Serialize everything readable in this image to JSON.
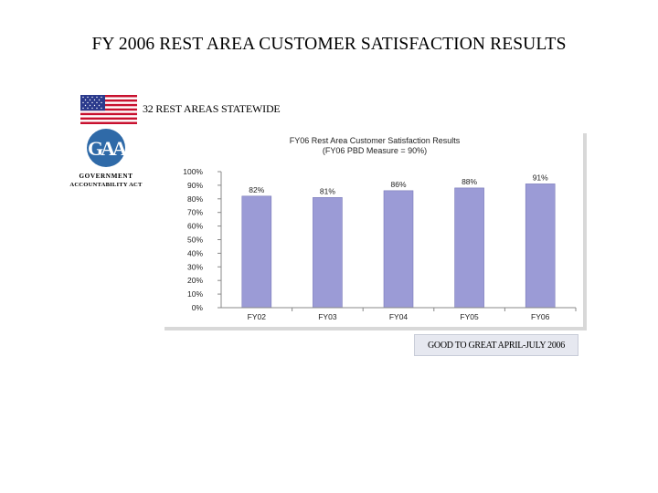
{
  "header": {
    "title": "FY 2006 REST AREA CUSTOMER SATISFACTION RESULTS",
    "subtitle": "32 REST AREAS STATEWIDE"
  },
  "logo": {
    "line1": "GOVERNMENT",
    "line2": "ACCOUNTABILITY ACT",
    "emblem_letters": "GAA",
    "icon": "gaa-logo-icon"
  },
  "flag": {
    "icon": "us-flag-icon"
  },
  "colors": {
    "bar": "#9b9bd6",
    "bar_edge": "#7a7ab8",
    "axis": "#888888",
    "logo_blue": "#2f6aa8"
  },
  "chart_data": {
    "type": "bar",
    "title": "FY06 Rest Area Customer Satisfaction Results",
    "subtitle": "(FY06 PBD Measure = 90%)",
    "categories": [
      "FY02",
      "FY03",
      "FY04",
      "FY05",
      "FY06"
    ],
    "values": [
      82,
      81,
      86,
      88,
      91
    ],
    "data_labels": [
      "82%",
      "81%",
      "86%",
      "88%",
      "91%"
    ],
    "ylim": [
      0,
      100
    ],
    "yticks": [
      "0%",
      "10%",
      "20%",
      "30%",
      "40%",
      "50%",
      "60%",
      "70%",
      "80%",
      "90%",
      "100%"
    ],
    "xlabel": "",
    "ylabel": "",
    "grid": false,
    "legend": "none"
  },
  "footer": {
    "label": "GOOD TO GREAT APRIL-JULY 2006"
  }
}
